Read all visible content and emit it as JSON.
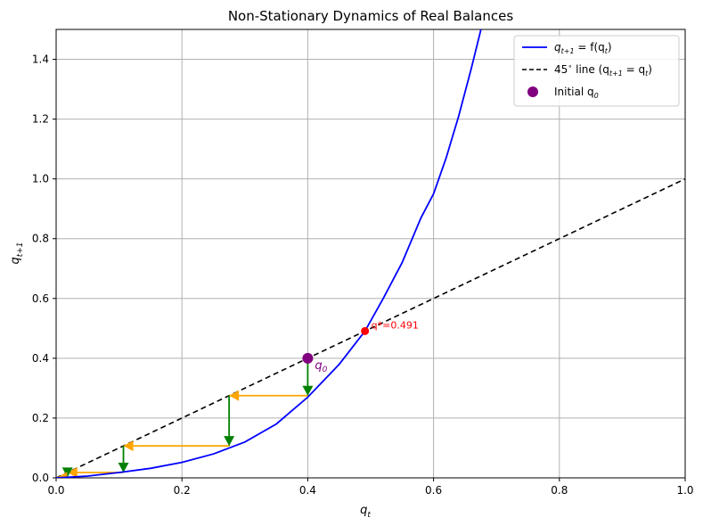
{
  "chart_data": {
    "type": "line",
    "title": "Non-Stationary Dynamics of Real Balances",
    "xlabel_main": "q",
    "xlabel_sub": "t",
    "ylabel_main": "q",
    "ylabel_sub": "t+1",
    "xlim": [
      0,
      1
    ],
    "ylim": [
      0,
      1.5
    ],
    "grid": true,
    "xticks": [
      "0.0",
      "0.2",
      "0.4",
      "0.6",
      "0.8",
      "1.0"
    ],
    "xtick_values": [
      0,
      0.2,
      0.4,
      0.6,
      0.8,
      1.0
    ],
    "yticks": [
      "0.0",
      "0.2",
      "0.4",
      "0.6",
      "0.8",
      "1.0",
      "1.2",
      "1.4"
    ],
    "ytick_values": [
      0,
      0.2,
      0.4,
      0.6,
      0.8,
      1.0,
      1.2,
      1.4
    ],
    "series": [
      {
        "legend_label": "q_{t+1} = f(q_t)",
        "color": "#0000ff",
        "style": "solid",
        "x": [
          0,
          0.05,
          0.1,
          0.15,
          0.2,
          0.25,
          0.3,
          0.35,
          0.4,
          0.45,
          0.491,
          0.52,
          0.55,
          0.58,
          0.6,
          0.62,
          0.64,
          0.66,
          0.68
        ],
        "y": [
          0,
          0.006,
          0.018,
          0.032,
          0.052,
          0.08,
          0.12,
          0.18,
          0.27,
          0.38,
          0.491,
          0.6,
          0.72,
          0.87,
          0.95,
          1.07,
          1.21,
          1.37,
          1.54
        ]
      },
      {
        "legend_label": "45° line (q_{t+1} = q_t)",
        "color": "#000000",
        "style": "dashed",
        "x": [
          0,
          1
        ],
        "y": [
          0,
          1
        ]
      }
    ],
    "initial_point": {
      "x": 0.4,
      "y": 0.4,
      "color": "#800080",
      "legend_label": "Initial q_0",
      "annotation_main": "q",
      "annotation_sub": "0"
    },
    "steady_state": {
      "x": 0.491,
      "y": 0.491,
      "color": "#ff0000",
      "label": "q*=0.491"
    },
    "cobweb": {
      "q_sequence": [
        0.4,
        0.275,
        0.107,
        0.018,
        0.002
      ],
      "vertical_color": "#008000",
      "horizontal_color": "#ffa500"
    },
    "legend": {
      "position": "top-right",
      "entries": [
        {
          "label_parts": [
            "q",
            "t+1",
            " = f(q",
            "t",
            ")"
          ],
          "marker": "line",
          "color": "#0000ff"
        },
        {
          "label_parts": [
            "45",
            "∘",
            " line (q",
            "t+1",
            " = q",
            "t",
            ")"
          ],
          "marker": "dashed",
          "color": "#000000"
        },
        {
          "label_parts": [
            "Initial q",
            "0"
          ],
          "marker": "dot",
          "color": "#800080"
        }
      ]
    }
  }
}
